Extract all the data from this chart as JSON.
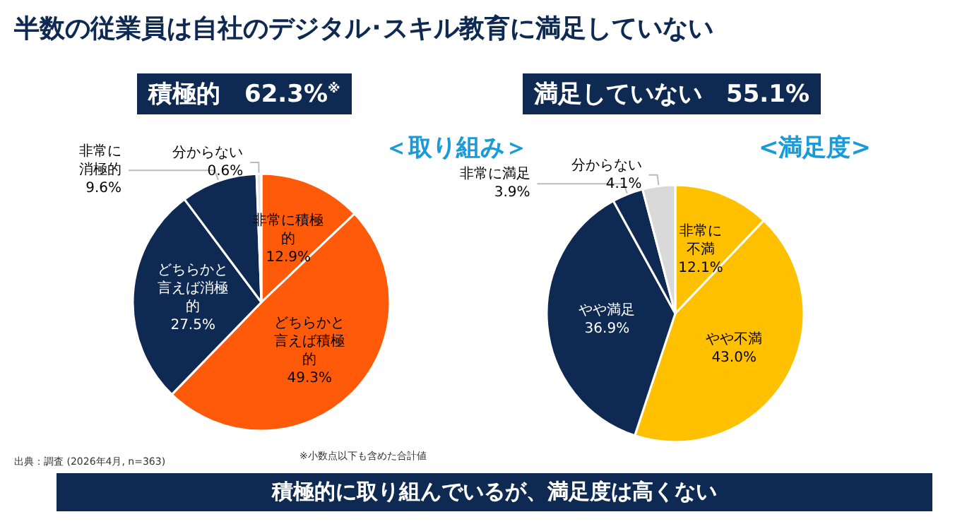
{
  "chart_data": [
    {
      "type": "pie",
      "title": "積極的　62.3%$^{※}$",
      "subtitle": "＜取り組み＞",
      "categories": [
        "非常に積極的",
        "どちらかと言えば積極的",
        "どちらかと言えば消極的",
        "非常に消極的",
        "分からない"
      ],
      "values": [
        12.9,
        49.3,
        27.5,
        9.6,
        0.6
      ],
      "value_labels": [
        "12.9%",
        "49.3%",
        "27.5%",
        "9.6%",
        "0.6%"
      ],
      "colors": [
        "#ff5a0a",
        "#ff5a0a",
        "#0f2a52",
        "#0f2a52",
        "#e6e6e6"
      ],
      "annotations": [
        "半数の従業員は自社のデジタル･スキル教育に満足していない",
        "出典：調査 (2026年4月, n=363)",
        "※小数点以下も含めた合計値",
        "積極的に取り組んでいるが、満足度は高くない"
      ]
    },
    {
      "type": "pie",
      "title": "満足していない　55.1%",
      "subtitle": "<満足度>",
      "categories": [
        "非常に不満",
        "やや不満",
        "やや満足",
        "非常に満足",
        "分からない"
      ],
      "values": [
        12.1,
        43.0,
        36.9,
        3.9,
        4.1
      ],
      "value_labels": [
        "12.1%",
        "43.0%",
        "36.9%",
        "3.9%",
        "4.1%"
      ],
      "colors": [
        "#ffc000",
        "#ffc000",
        "#0f2a52",
        "#0f2a52",
        "#d9d9d9"
      ]
    }
  ]
}
